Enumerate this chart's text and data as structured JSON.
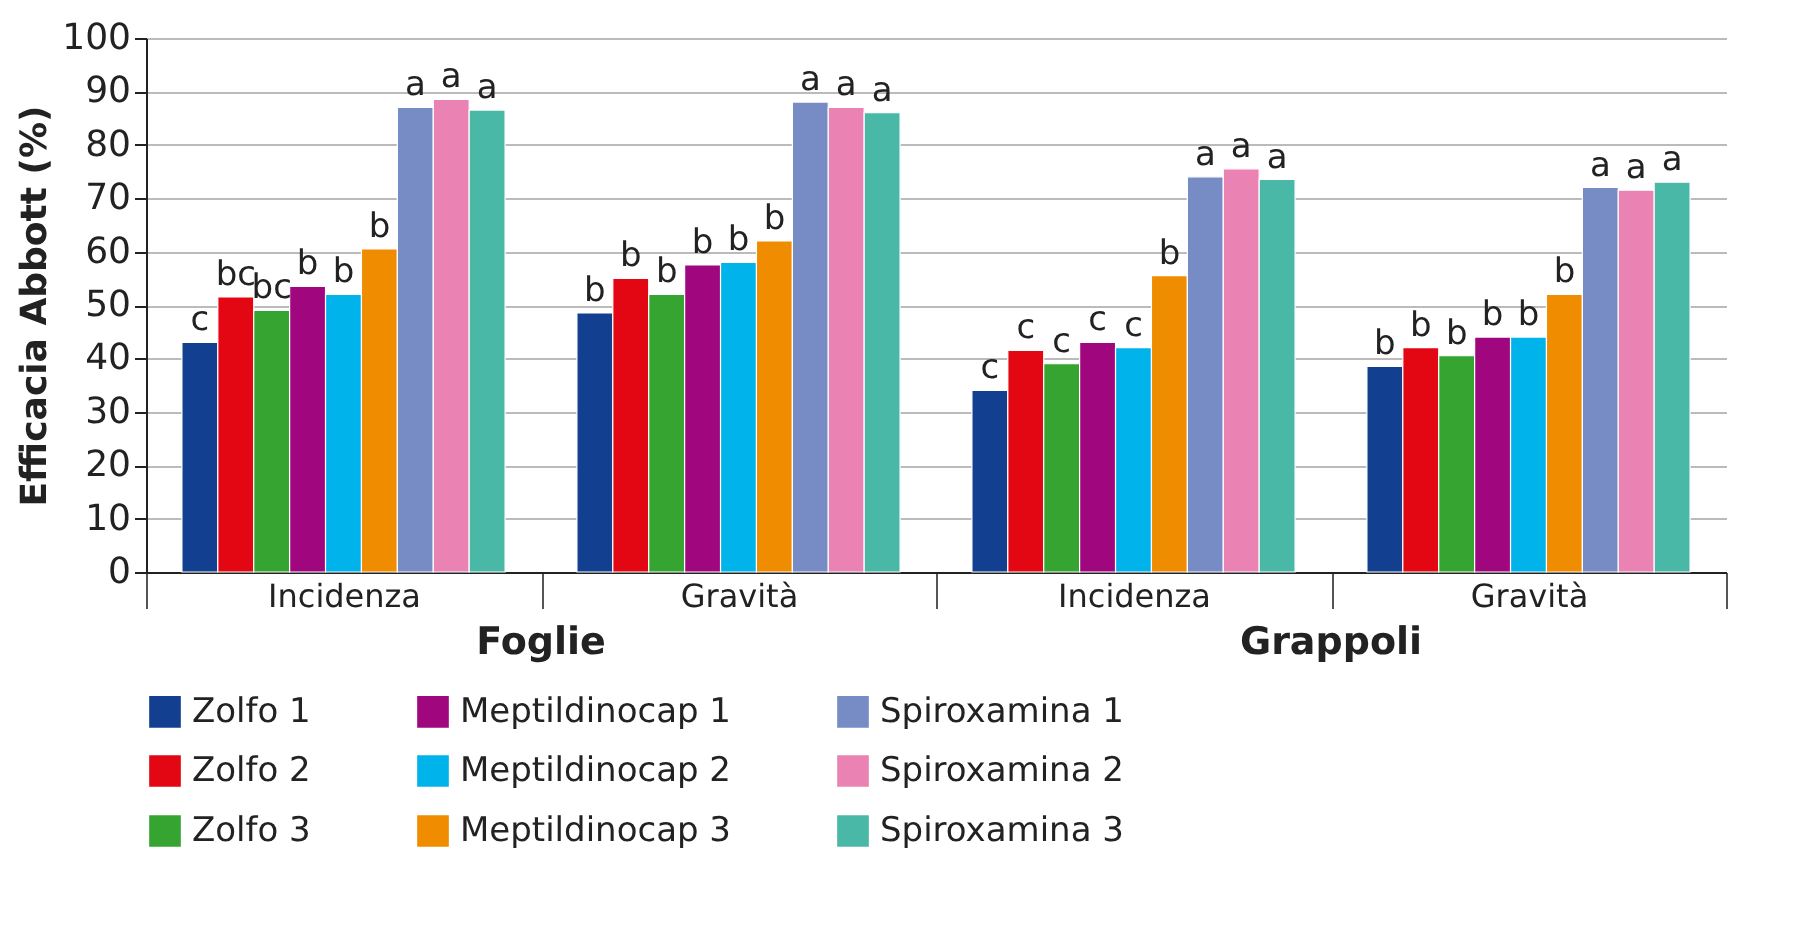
{
  "chart_data": {
    "type": "bar",
    "ylabel": "Efficacia Abbott (%)",
    "categories": [
      "Incidenza",
      "Gravità",
      "Incidenza",
      "Gravità"
    ],
    "annotations": [
      "Foglie",
      "Grappoli"
    ],
    "ylim": [
      0,
      100
    ],
    "yticks": [
      0,
      10,
      20,
      30,
      40,
      50,
      60,
      70,
      80,
      90,
      100
    ],
    "grid": "y",
    "legend": "bottom",
    "series": [
      {
        "name": "Zolfo 1",
        "color": "#123f8f",
        "values": [
          43,
          48.5,
          34,
          38.5
        ],
        "value_labels": [
          "c",
          "b",
          "c",
          "b"
        ]
      },
      {
        "name": "Zolfo 2",
        "color": "#e30613",
        "values": [
          51.5,
          55,
          41.5,
          42
        ],
        "value_labels": [
          "bc",
          "b",
          "c",
          "b"
        ]
      },
      {
        "name": "Zolfo 3",
        "color": "#36a430",
        "values": [
          49,
          52,
          39,
          40.5
        ],
        "value_labels": [
          "bc",
          "b",
          "c",
          "b"
        ]
      },
      {
        "name": "Meptildinocap 1",
        "color": "#a0077f",
        "values": [
          53.5,
          57.5,
          43,
          44
        ],
        "value_labels": [
          "b",
          "b",
          "c",
          "b"
        ]
      },
      {
        "name": "Meptildinocap 2",
        "color": "#00b3ea",
        "values": [
          52,
          58,
          42,
          44
        ],
        "value_labels": [
          "b",
          "b",
          "c",
          "b"
        ]
      },
      {
        "name": "Meptildinocap 3",
        "color": "#f08c00",
        "values": [
          60.5,
          62,
          55.5,
          52
        ],
        "value_labels": [
          "b",
          "b",
          "b",
          "b"
        ]
      },
      {
        "name": "Spiroxamina 1",
        "color": "#778bc4",
        "values": [
          87,
          88,
          74,
          72
        ],
        "value_labels": [
          "a",
          "a",
          "a",
          "a"
        ]
      },
      {
        "name": "Spiroxamina 2",
        "color": "#ea83b3",
        "values": [
          88.5,
          87,
          75.5,
          71.5
        ],
        "value_labels": [
          "a",
          "a",
          "a",
          "a"
        ]
      },
      {
        "name": "Spiroxamina 3",
        "color": "#4ab8a7",
        "values": [
          86.5,
          86,
          73.5,
          73
        ],
        "value_labels": [
          "a",
          "a",
          "a",
          "a"
        ]
      }
    ]
  }
}
